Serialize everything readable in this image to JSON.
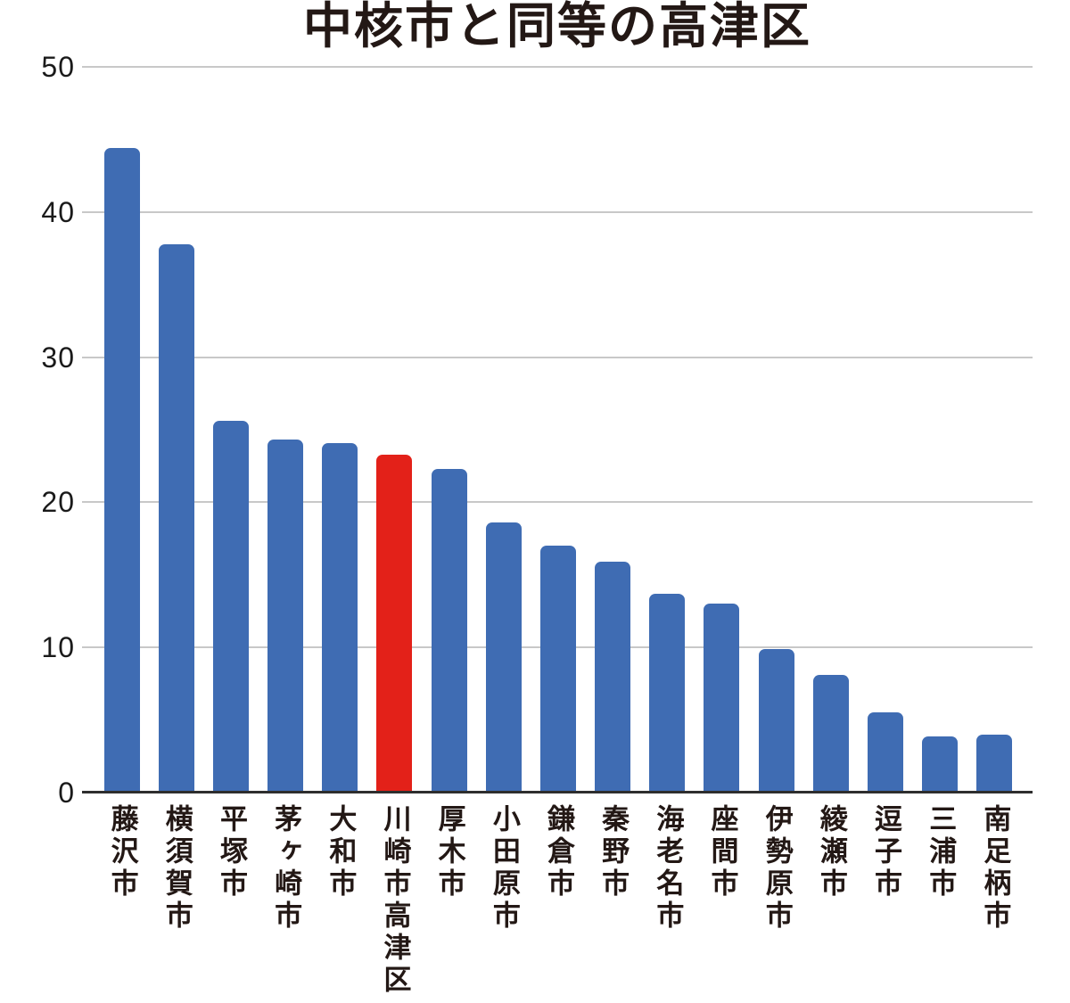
{
  "chart_data": {
    "type": "bar",
    "title": "中核市と同等の高津区",
    "categories": [
      "藤沢市",
      "横須賀市",
      "平塚市",
      "茅ヶ崎市",
      "大和市",
      "川崎市高津区",
      "厚木市",
      "小田原市",
      "鎌倉市",
      "秦野市",
      "海老名市",
      "座間市",
      "伊勢原市",
      "綾瀬市",
      "逗子市",
      "三浦市",
      "南足柄市"
    ],
    "values": [
      44.4,
      37.8,
      25.6,
      24.3,
      24.1,
      23.3,
      22.3,
      18.6,
      17.0,
      15.9,
      13.7,
      13.0,
      9.9,
      8.1,
      5.5,
      3.9,
      4.0
    ],
    "highlight_category": "川崎市高津区",
    "highlight_index": 5,
    "bar_color": "#3f6cb3",
    "highlight_color": "#e32119",
    "xlabel": "",
    "ylabel": "",
    "ylim": [
      0,
      50
    ],
    "yticks": [
      0,
      10,
      20,
      30,
      40,
      50
    ],
    "grid": true,
    "legend": "none"
  },
  "colors": {
    "background": "#ffffff",
    "text": "#231815",
    "gridline": "#c8c8c8",
    "axis_line": "#2e2e2e"
  }
}
